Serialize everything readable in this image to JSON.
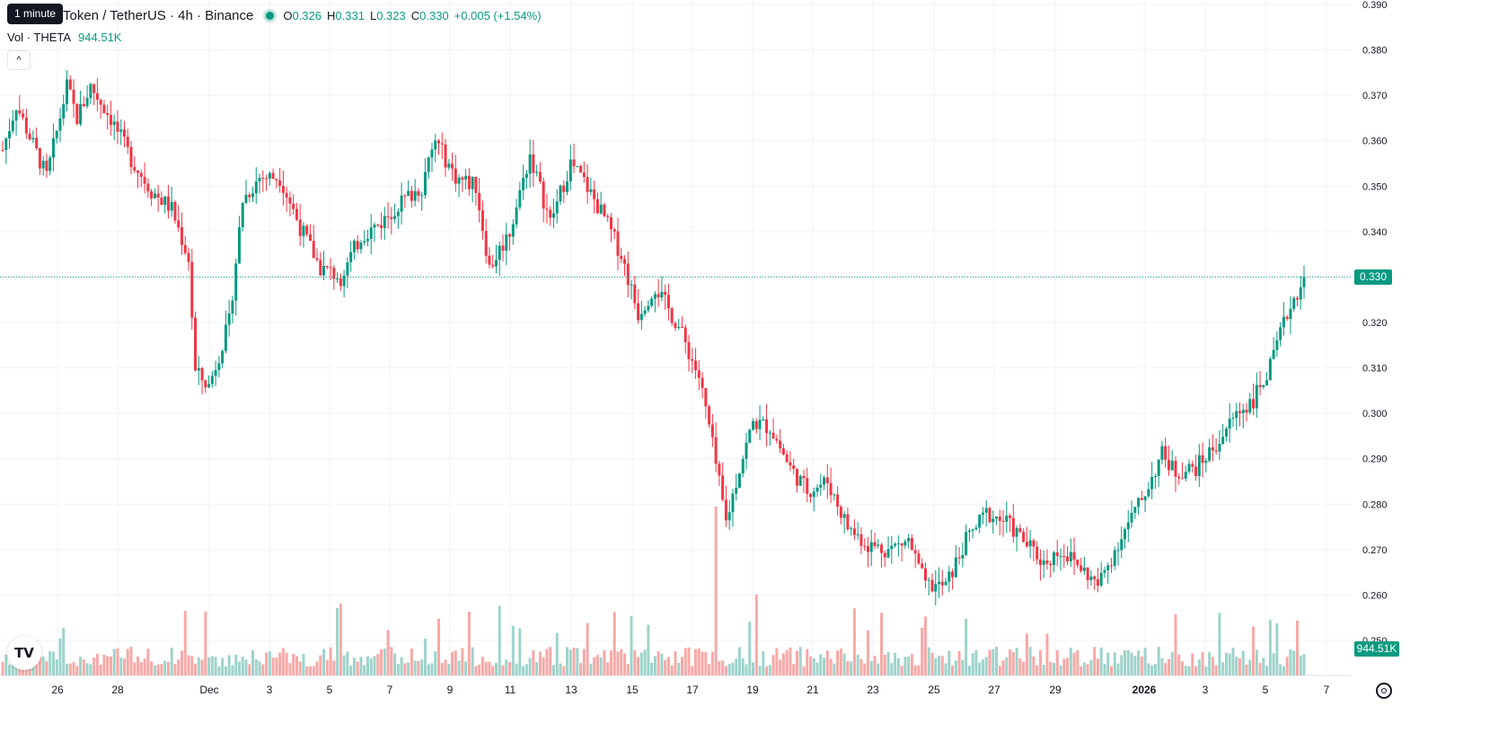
{
  "legend": {
    "title": "Token / TetherUS · 4h · Binance",
    "o_label": "O",
    "o_value": "0.326",
    "h_label": "H",
    "h_value": "0.331",
    "l_label": "L",
    "l_value": "0.323",
    "c_label": "C",
    "c_value": "0.330",
    "change": "+0.005 (+1.54%)",
    "tooltip": "1 minute"
  },
  "volume_legend": {
    "label": "Vol · THETA",
    "value": "944.51K"
  },
  "price_tag": "0.330",
  "volume_tag": "944.51K",
  "colors": {
    "up": "#089981",
    "down": "#F23645",
    "up_vol": "#9ed3cb",
    "down_vol": "#f7a9a7",
    "grid": "#f0f3fa"
  },
  "icons": {
    "logo": "tradingview-logo-icon",
    "settings": "settings-gear-icon",
    "collapse": "chevron-up-icon"
  },
  "chart_data": {
    "type": "candlestick",
    "symbol": "Token / TetherUS",
    "interval": "4h",
    "exchange": "Binance",
    "y_axis": {
      "ticks": [
        "0.390",
        "0.380",
        "0.370",
        "0.360",
        "0.350",
        "0.340",
        "0.330",
        "0.320",
        "0.310",
        "0.300",
        "0.290",
        "0.280",
        "0.270",
        "0.260",
        "0.250"
      ],
      "range": [
        0.249,
        0.39
      ]
    },
    "x_axis": {
      "ticks": [
        "26",
        "28",
        "Dec",
        "3",
        "5",
        "7",
        "9",
        "11",
        "13",
        "15",
        "17",
        "19",
        "21",
        "23",
        "25",
        "27",
        "29",
        "2026",
        "3",
        "5",
        "7"
      ]
    },
    "last_close": 0.33,
    "anchors": [
      {
        "t": 0,
        "p": 0.358
      },
      {
        "t": 4,
        "p": 0.368
      },
      {
        "t": 13,
        "p": 0.352
      },
      {
        "t": 19,
        "p": 0.372
      },
      {
        "t": 22,
        "p": 0.365
      },
      {
        "t": 26,
        "p": 0.372
      },
      {
        "t": 32,
        "p": 0.365
      },
      {
        "t": 38,
        "p": 0.356
      },
      {
        "t": 44,
        "p": 0.349
      },
      {
        "t": 50,
        "p": 0.345
      },
      {
        "t": 55,
        "p": 0.334
      },
      {
        "t": 57,
        "p": 0.309
      },
      {
        "t": 61,
        "p": 0.306
      },
      {
        "t": 67,
        "p": 0.32
      },
      {
        "t": 71,
        "p": 0.347
      },
      {
        "t": 76,
        "p": 0.352
      },
      {
        "t": 82,
        "p": 0.352
      },
      {
        "t": 88,
        "p": 0.341
      },
      {
        "t": 94,
        "p": 0.332
      },
      {
        "t": 100,
        "p": 0.33
      },
      {
        "t": 106,
        "p": 0.339
      },
      {
        "t": 112,
        "p": 0.342
      },
      {
        "t": 117,
        "p": 0.346
      },
      {
        "t": 124,
        "p": 0.35
      },
      {
        "t": 128,
        "p": 0.36
      },
      {
        "t": 134,
        "p": 0.352
      },
      {
        "t": 140,
        "p": 0.35
      },
      {
        "t": 144,
        "p": 0.332
      },
      {
        "t": 150,
        "p": 0.34
      },
      {
        "t": 156,
        "p": 0.357
      },
      {
        "t": 162,
        "p": 0.342
      },
      {
        "t": 168,
        "p": 0.355
      },
      {
        "t": 172,
        "p": 0.351
      },
      {
        "t": 178,
        "p": 0.343
      },
      {
        "t": 183,
        "p": 0.335
      },
      {
        "t": 188,
        "p": 0.322
      },
      {
        "t": 193,
        "p": 0.328
      },
      {
        "t": 200,
        "p": 0.319
      },
      {
        "t": 206,
        "p": 0.308
      },
      {
        "t": 209,
        "p": 0.297
      },
      {
        "t": 214,
        "p": 0.276
      },
      {
        "t": 218,
        "p": 0.288
      },
      {
        "t": 222,
        "p": 0.298
      },
      {
        "t": 227,
        "p": 0.297
      },
      {
        "t": 233,
        "p": 0.288
      },
      {
        "t": 238,
        "p": 0.283
      },
      {
        "t": 244,
        "p": 0.285
      },
      {
        "t": 250,
        "p": 0.275
      },
      {
        "t": 256,
        "p": 0.271
      },
      {
        "t": 262,
        "p": 0.27
      },
      {
        "t": 268,
        "p": 0.272
      },
      {
        "t": 273,
        "p": 0.262
      },
      {
        "t": 279,
        "p": 0.262
      },
      {
        "t": 285,
        "p": 0.272
      },
      {
        "t": 291,
        "p": 0.278
      },
      {
        "t": 297,
        "p": 0.276
      },
      {
        "t": 302,
        "p": 0.272
      },
      {
        "t": 308,
        "p": 0.267
      },
      {
        "t": 313,
        "p": 0.27
      },
      {
        "t": 319,
        "p": 0.266
      },
      {
        "t": 324,
        "p": 0.262
      },
      {
        "t": 331,
        "p": 0.273
      },
      {
        "t": 337,
        "p": 0.281
      },
      {
        "t": 343,
        "p": 0.291
      },
      {
        "t": 347,
        "p": 0.287
      },
      {
        "t": 353,
        "p": 0.288
      },
      {
        "t": 359,
        "p": 0.293
      },
      {
        "t": 365,
        "p": 0.3
      },
      {
        "t": 370,
        "p": 0.303
      },
      {
        "t": 375,
        "p": 0.31
      },
      {
        "t": 380,
        "p": 0.322
      },
      {
        "t": 385,
        "p": 0.33
      }
    ]
  }
}
